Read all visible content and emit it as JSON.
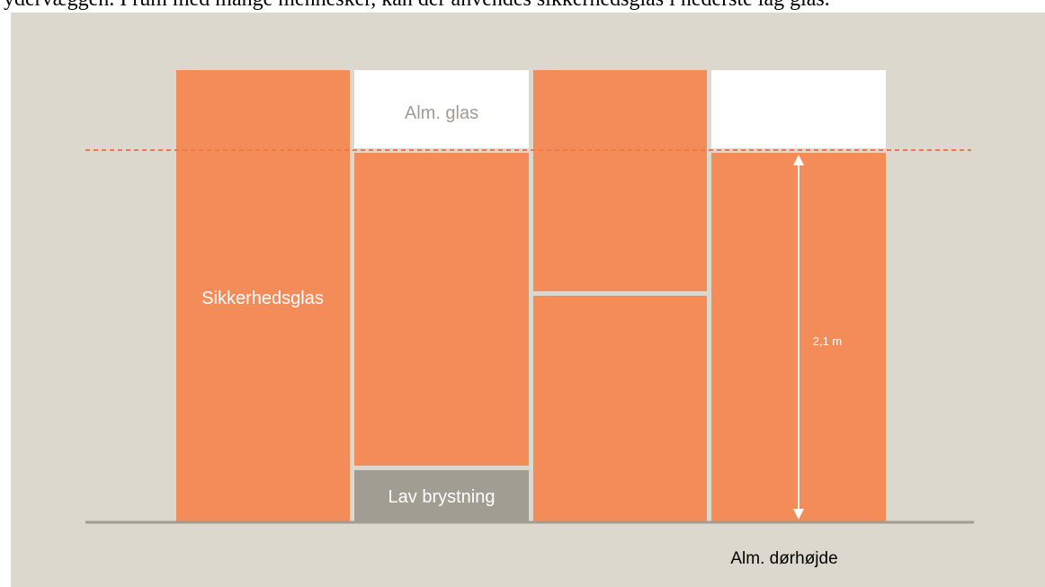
{
  "caption": "ydervæggen. I rum med mange mennesker, kan der anvendes sikkerhedsglas i nederste lag glas.",
  "labels": {
    "safety_glass": "Sikkerhedsglas",
    "plain_glass": "Alm. glas",
    "low_parapet": "Lav brystning",
    "height": "2,1 m",
    "door_height": "Alm. dørhøjde"
  }
}
